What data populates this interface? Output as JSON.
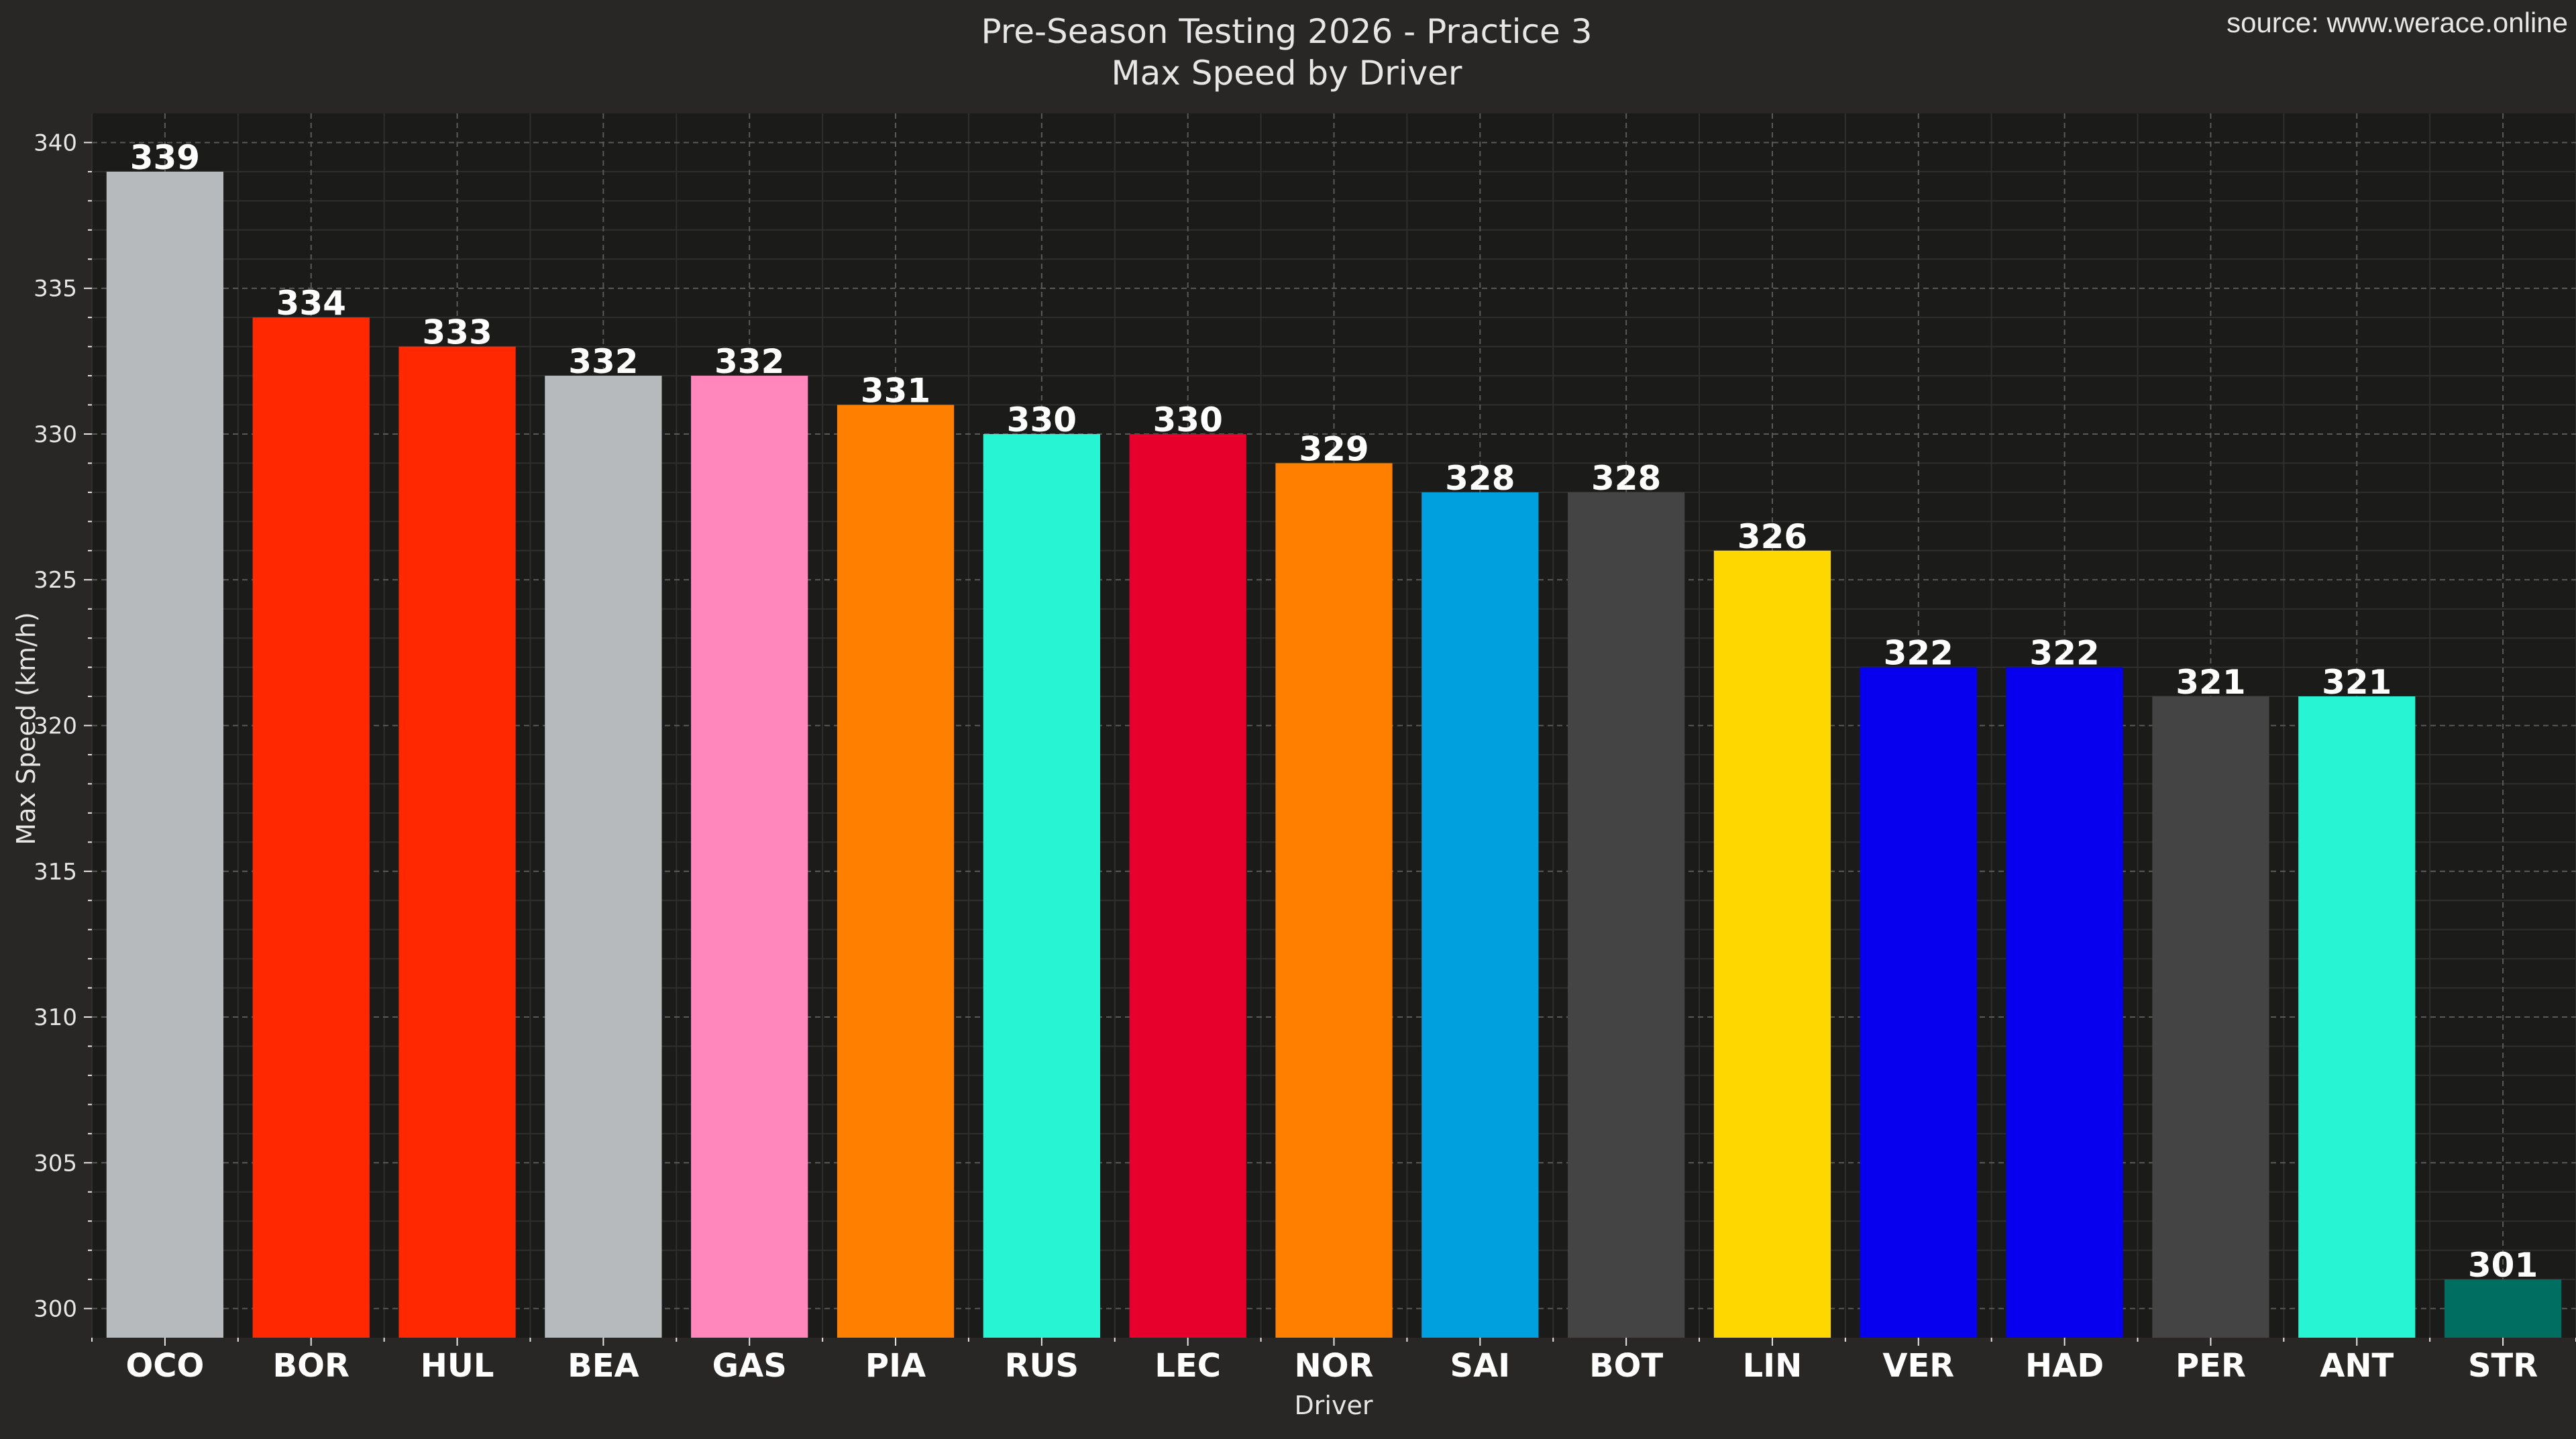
{
  "chart_data": {
    "type": "bar",
    "title": "Pre-Season Testing 2026 - Practice 3",
    "subtitle": "Max Speed by Driver",
    "source": "source: www.werace.online",
    "xlabel": "Driver",
    "ylabel": "Max Speed (km/h)",
    "ylim": [
      299,
      341
    ],
    "yticks": [
      300,
      305,
      310,
      315,
      320,
      325,
      330,
      335,
      340
    ],
    "grid": true,
    "categories": [
      "OCO",
      "BOR",
      "HUL",
      "BEA",
      "GAS",
      "PIA",
      "RUS",
      "LEC",
      "NOR",
      "SAI",
      "BOT",
      "LIN",
      "VER",
      "HAD",
      "PER",
      "ANT",
      "STR"
    ],
    "values": [
      339,
      334,
      333,
      332,
      332,
      331,
      330,
      330,
      329,
      328,
      328,
      326,
      322,
      322,
      321,
      321,
      301
    ],
    "colors": [
      "#b6babd",
      "#ff2800",
      "#ff2800",
      "#b6babd",
      "#ff87bc",
      "#ff8000",
      "#27f4d2",
      "#e8002d",
      "#ff8000",
      "#00a0de",
      "#444444",
      "#ffd700",
      "#0600ef",
      "#0600ef",
      "#444444",
      "#27f4d2",
      "#006f62"
    ]
  },
  "theme": {
    "page_bg": "#292726",
    "plot_bg": "#1b1b1a",
    "text_color": "#e6e6e6",
    "grid_color": "#5a5a5a"
  }
}
